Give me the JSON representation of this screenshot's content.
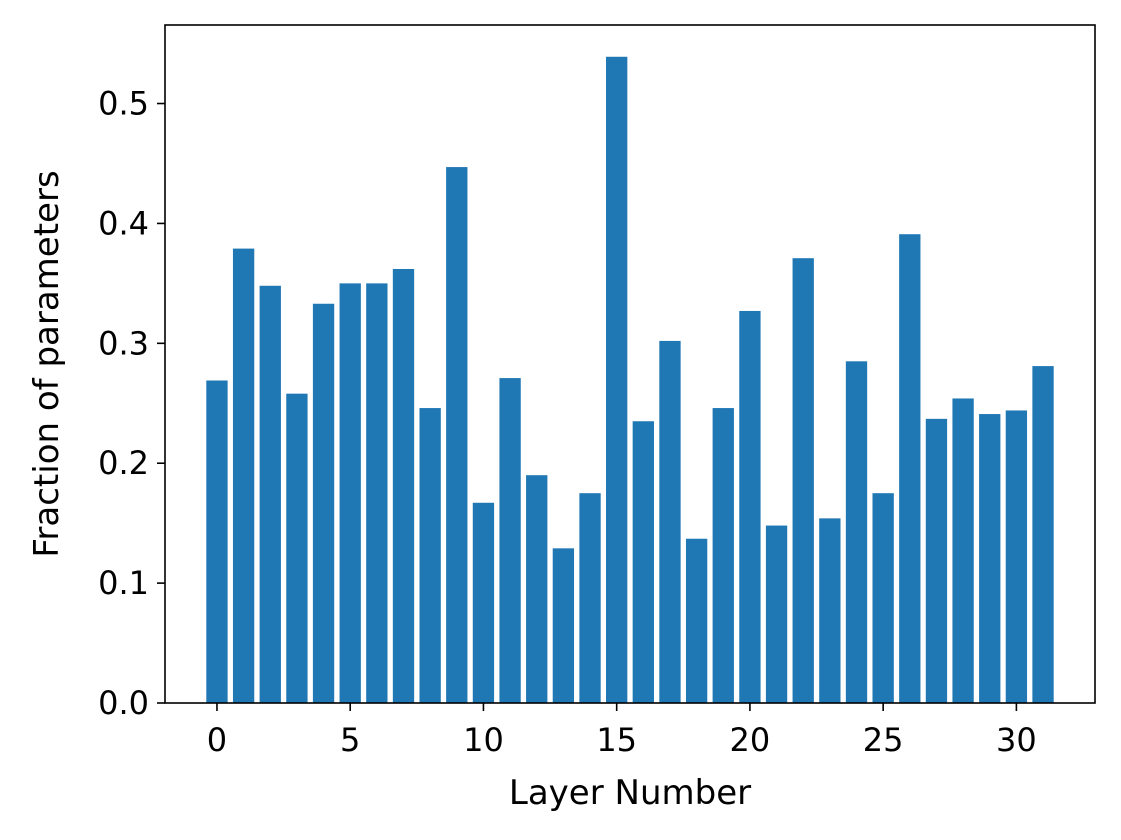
{
  "chart_data": {
    "type": "bar",
    "title": "",
    "xlabel": "Layer Number",
    "ylabel": "Fraction of parameters",
    "x": [
      0,
      1,
      2,
      3,
      4,
      5,
      6,
      7,
      8,
      9,
      10,
      11,
      12,
      13,
      14,
      15,
      16,
      17,
      18,
      19,
      20,
      21,
      22,
      23,
      24,
      25,
      26,
      27,
      28,
      29,
      30,
      31
    ],
    "values": [
      0.269,
      0.379,
      0.348,
      0.258,
      0.333,
      0.35,
      0.35,
      0.362,
      0.246,
      0.447,
      0.167,
      0.271,
      0.19,
      0.129,
      0.175,
      0.539,
      0.235,
      0.302,
      0.137,
      0.246,
      0.327,
      0.148,
      0.371,
      0.154,
      0.285,
      0.175,
      0.391,
      0.237,
      0.254,
      0.241,
      0.244,
      0.281
    ],
    "xlim": [
      -1.95,
      32.95
    ],
    "ylim": [
      0,
      0.5655
    ],
    "xticks": [
      0,
      5,
      10,
      15,
      20,
      25,
      30
    ],
    "xtick_labels": [
      "0",
      "5",
      "10",
      "15",
      "20",
      "25",
      "30"
    ],
    "yticks": [
      0.0,
      0.1,
      0.2,
      0.3,
      0.4,
      0.5
    ],
    "ytick_labels": [
      "0.0",
      "0.1",
      "0.2",
      "0.3",
      "0.4",
      "0.5"
    ],
    "bar_color": "#1f77b4",
    "grid": false,
    "legend": false
  }
}
